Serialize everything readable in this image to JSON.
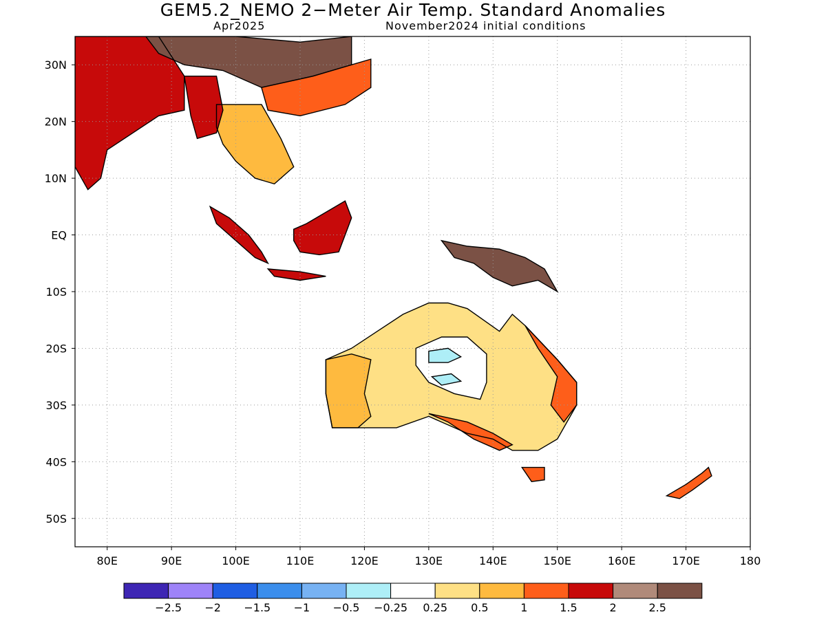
{
  "header": {
    "title": "GEM5.2_NEMO 2−Meter Air Temp. Standard Anomalies",
    "valid_month": "Apr2025",
    "init_conditions": "November2024 initial conditions"
  },
  "map": {
    "lon_range": [
      75,
      180
    ],
    "lat_range": [
      -55,
      35
    ],
    "x_ticks": [
      {
        "lon": 80,
        "label": "80E"
      },
      {
        "lon": 90,
        "label": "90E"
      },
      {
        "lon": 100,
        "label": "100E"
      },
      {
        "lon": 110,
        "label": "110E"
      },
      {
        "lon": 120,
        "label": "120E"
      },
      {
        "lon": 130,
        "label": "130E"
      },
      {
        "lon": 140,
        "label": "140E"
      },
      {
        "lon": 150,
        "label": "150E"
      },
      {
        "lon": 160,
        "label": "160E"
      },
      {
        "lon": 170,
        "label": "170E"
      },
      {
        "lon": 180,
        "label": "180"
      }
    ],
    "y_ticks": [
      {
        "lat": 30,
        "label": "30N"
      },
      {
        "lat": 20,
        "label": "20N"
      },
      {
        "lat": 10,
        "label": "10N"
      },
      {
        "lat": 0,
        "label": "EQ"
      },
      {
        "lat": -10,
        "label": "10S"
      },
      {
        "lat": -20,
        "label": "20S"
      },
      {
        "lat": -30,
        "label": "30S"
      },
      {
        "lat": -40,
        "label": "40S"
      },
      {
        "lat": -50,
        "label": "50S"
      }
    ],
    "grid": true,
    "coastline_color": "#000000",
    "regions": [
      {
        "id": "south-asia",
        "category": 1.5,
        "points": [
          [
            75,
            35
          ],
          [
            88,
            35
          ],
          [
            92,
            28
          ],
          [
            92,
            22
          ],
          [
            88,
            21
          ],
          [
            84,
            18
          ],
          [
            80,
            15
          ],
          [
            79,
            10
          ],
          [
            77,
            8
          ],
          [
            75,
            12
          ]
        ]
      },
      {
        "id": "china-north",
        "category": 2.5,
        "points": [
          [
            86,
            35
          ],
          [
            100,
            35
          ],
          [
            110,
            34
          ],
          [
            118,
            35
          ],
          [
            118,
            30
          ],
          [
            112,
            28
          ],
          [
            104,
            26
          ],
          [
            98,
            29
          ],
          [
            92,
            30
          ],
          [
            88,
            32
          ]
        ]
      },
      {
        "id": "china-south",
        "category": 1,
        "points": [
          [
            104,
            26
          ],
          [
            112,
            28
          ],
          [
            118,
            30
          ],
          [
            121,
            31
          ],
          [
            121,
            26
          ],
          [
            117,
            23
          ],
          [
            110,
            21
          ],
          [
            105,
            22
          ]
        ]
      },
      {
        "id": "indochina",
        "category": 0.5,
        "points": [
          [
            97,
            23
          ],
          [
            104,
            23
          ],
          [
            107,
            17
          ],
          [
            109,
            12
          ],
          [
            106,
            9
          ],
          [
            103,
            10
          ],
          [
            100,
            13
          ],
          [
            98,
            16
          ],
          [
            97,
            19
          ]
        ]
      },
      {
        "id": "myanmar",
        "category": 1.5,
        "points": [
          [
            92,
            28
          ],
          [
            97,
            28
          ],
          [
            98,
            22
          ],
          [
            97,
            18
          ],
          [
            94,
            17
          ],
          [
            93,
            21
          ]
        ]
      },
      {
        "id": "sumatra",
        "category": 1.5,
        "points": [
          [
            96,
            5
          ],
          [
            99,
            3
          ],
          [
            102,
            0
          ],
          [
            104,
            -3
          ],
          [
            105,
            -5
          ],
          [
            103,
            -4
          ],
          [
            100,
            -1
          ],
          [
            97,
            2
          ]
        ]
      },
      {
        "id": "java",
        "category": 1.5,
        "points": [
          [
            105,
            -6
          ],
          [
            110,
            -6.5
          ],
          [
            114,
            -7.3
          ],
          [
            110,
            -8
          ],
          [
            106,
            -7.3
          ]
        ]
      },
      {
        "id": "borneo",
        "category": 1.5,
        "points": [
          [
            109,
            1
          ],
          [
            111,
            2
          ],
          [
            114,
            4
          ],
          [
            117,
            6
          ],
          [
            118,
            3
          ],
          [
            117,
            0
          ],
          [
            116,
            -3
          ],
          [
            113,
            -3.5
          ],
          [
            110,
            -3
          ],
          [
            109,
            -1
          ]
        ]
      },
      {
        "id": "new-guinea",
        "category": 2.5,
        "points": [
          [
            132,
            -1
          ],
          [
            136,
            -2
          ],
          [
            141,
            -2.5
          ],
          [
            145,
            -4
          ],
          [
            148,
            -6
          ],
          [
            150,
            -10
          ],
          [
            147,
            -8
          ],
          [
            143,
            -9
          ],
          [
            140,
            -7.5
          ],
          [
            137,
            -5
          ],
          [
            134,
            -4
          ]
        ]
      },
      {
        "id": "australia-north",
        "category": 0.25,
        "points": [
          [
            122,
            -17
          ],
          [
            126,
            -14
          ],
          [
            130,
            -12
          ],
          [
            133,
            -12
          ],
          [
            136,
            -13
          ],
          [
            141,
            -17
          ],
          [
            143,
            -14
          ],
          [
            145,
            -16
          ],
          [
            150,
            -22
          ],
          [
            153,
            -26
          ],
          [
            153,
            -30
          ],
          [
            150,
            -36
          ],
          [
            147,
            -38
          ],
          [
            143,
            -38
          ],
          [
            140,
            -36
          ],
          [
            136,
            -35
          ],
          [
            130,
            -32
          ],
          [
            125,
            -34
          ],
          [
            119,
            -34
          ],
          [
            115,
            -34
          ],
          [
            114,
            -28
          ],
          [
            114,
            -22
          ],
          [
            118,
            -20
          ]
        ]
      },
      {
        "id": "australia-west",
        "category": 0.5,
        "points": [
          [
            114,
            -22
          ],
          [
            118,
            -21
          ],
          [
            121,
            -22
          ],
          [
            120,
            -28
          ],
          [
            121,
            -32
          ],
          [
            119,
            -34
          ],
          [
            115,
            -34
          ],
          [
            114,
            -28
          ]
        ]
      },
      {
        "id": "australia-east",
        "category": 1,
        "points": [
          [
            145,
            -16
          ],
          [
            150,
            -22
          ],
          [
            153,
            -26
          ],
          [
            153,
            -30
          ],
          [
            151,
            -33
          ],
          [
            149,
            -30
          ],
          [
            150,
            -25
          ],
          [
            147,
            -20
          ]
        ]
      },
      {
        "id": "australia-south",
        "category": 1,
        "points": [
          [
            130,
            -31.5
          ],
          [
            136,
            -33
          ],
          [
            140,
            -35
          ],
          [
            143,
            -37
          ],
          [
            141,
            -38
          ],
          [
            137,
            -36
          ],
          [
            133,
            -33
          ]
        ]
      },
      {
        "id": "australia-interior-light",
        "category": -0.25,
        "points": [
          [
            128,
            -20
          ],
          [
            132,
            -18
          ],
          [
            136,
            -18
          ],
          [
            139,
            -21
          ],
          [
            139,
            -26
          ],
          [
            138,
            -29
          ],
          [
            134,
            -28
          ],
          [
            130,
            -26
          ],
          [
            128,
            -23
          ]
        ]
      },
      {
        "id": "australia-interior-dark",
        "category": -0.5,
        "points": [
          [
            130,
            -20.5
          ],
          [
            133,
            -20
          ],
          [
            135,
            -21.5
          ],
          [
            133,
            -22.5
          ],
          [
            130,
            -22.5
          ]
        ]
      },
      {
        "id": "australia-interior-dark-2",
        "category": -0.5,
        "points": [
          [
            130.5,
            -25
          ],
          [
            133.5,
            -24.5
          ],
          [
            135,
            -25.8
          ],
          [
            132,
            -26.5
          ]
        ]
      },
      {
        "id": "new-zealand-south",
        "category": 1,
        "points": [
          [
            167,
            -46
          ],
          [
            170,
            -44
          ],
          [
            172.5,
            -42
          ],
          [
            173.5,
            -41
          ],
          [
            174,
            -42.5
          ],
          [
            171,
            -45
          ],
          [
            169,
            -46.5
          ]
        ]
      },
      {
        "id": "tasmania",
        "category": 1,
        "points": [
          [
            144.5,
            -41
          ],
          [
            148,
            -41
          ],
          [
            148,
            -43.2
          ],
          [
            146,
            -43.5
          ]
        ]
      }
    ]
  },
  "legend": {
    "colors": [
      "#3e26b4",
      "#9e83f8",
      "#1f5ee3",
      "#3b8eec",
      "#77b2f3",
      "#aeeef7",
      "#ffffff",
      "#fee085",
      "#feba3f",
      "#fe5e1a",
      "#c70a0a",
      "#b08a7a",
      "#7b5145"
    ],
    "labels": [
      "−2.5",
      "−2",
      "−1.5",
      "−1",
      "−0.5",
      "−0.25",
      "0.25",
      "0.5",
      "1",
      "1.5",
      "2",
      "2.5"
    ],
    "category_values": [
      -3,
      -2.5,
      -2,
      -1.5,
      -1,
      -0.5,
      -0.25,
      0.25,
      0.5,
      1,
      1.5,
      2,
      2.5
    ]
  }
}
